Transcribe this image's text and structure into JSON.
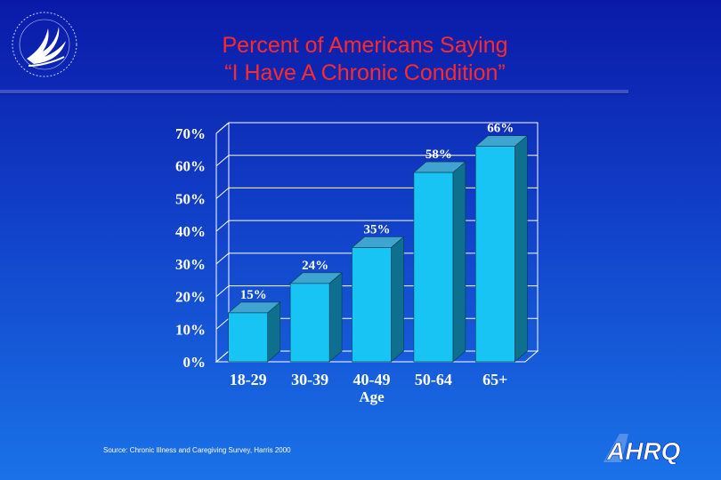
{
  "slide": {
    "title_line1": "Percent of Americans Saying",
    "title_line2": "“I Have A Chronic Condition”",
    "source": "Source: Chronic Illness and Caregiving Survey, Harris 2000",
    "logo_text": "AHRQ"
  },
  "colors": {
    "title": "#ff2a2a",
    "bar_front": "#17c4f4",
    "bar_top": "#3fa4d0",
    "bar_side": "#0e6f8f",
    "plot_wall": "#ffffff"
  },
  "chart_data": {
    "type": "bar",
    "title": "Percent of Americans Saying “I Have A Chronic Condition”",
    "xlabel": "Age",
    "ylabel": "",
    "categories": [
      "18-29",
      "30-39",
      "40-49",
      "50-64",
      "65+"
    ],
    "values": [
      15,
      24,
      35,
      58,
      66
    ],
    "data_labels": [
      "15%",
      "24%",
      "35%",
      "58%",
      "66%"
    ],
    "ylim": [
      0,
      70
    ],
    "yticks": [
      0,
      10,
      20,
      30,
      40,
      50,
      60,
      70
    ],
    "ytick_labels": [
      "0%",
      "10%",
      "20%",
      "30%",
      "40%",
      "50%",
      "60%",
      "70%"
    ],
    "grid": true,
    "style": "3d-columns"
  }
}
